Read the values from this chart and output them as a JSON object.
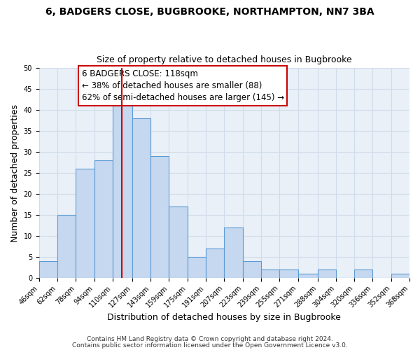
{
  "title": "6, BADGERS CLOSE, BUGBROOKE, NORTHAMPTON, NN7 3BA",
  "subtitle": "Size of property relative to detached houses in Bugbrooke",
  "xlabel": "Distribution of detached houses by size in Bugbrooke",
  "ylabel": "Number of detached properties",
  "bar_values": [
    4,
    15,
    26,
    28,
    42,
    38,
    29,
    17,
    5,
    7,
    12,
    4,
    2,
    2,
    1,
    2,
    0,
    2,
    0,
    1
  ],
  "bin_edges": [
    46,
    62,
    78,
    94,
    110,
    127,
    143,
    159,
    175,
    191,
    207,
    223,
    239,
    255,
    271,
    288,
    304,
    320,
    336,
    352,
    368
  ],
  "tick_labels": [
    "46sqm",
    "62sqm",
    "78sqm",
    "94sqm",
    "110sqm",
    "127sqm",
    "143sqm",
    "159sqm",
    "175sqm",
    "191sqm",
    "207sqm",
    "223sqm",
    "239sqm",
    "255sqm",
    "271sqm",
    "288sqm",
    "304sqm",
    "320sqm",
    "336sqm",
    "352sqm",
    "368sqm"
  ],
  "bar_color": "#c5d8f0",
  "bar_edge_color": "#5b9bd5",
  "vline_x": 118,
  "vline_color": "#cc0000",
  "annotation_line1": "6 BADGERS CLOSE: 118sqm",
  "annotation_line2": "← 38% of detached houses are smaller (88)",
  "annotation_line3": "62% of semi-detached houses are larger (145) →",
  "annotation_box_color": "#cc0000",
  "annotation_bg": "#ffffff",
  "ylim": [
    0,
    50
  ],
  "yticks": [
    0,
    5,
    10,
    15,
    20,
    25,
    30,
    35,
    40,
    45,
    50
  ],
  "grid_color": "#d0dcea",
  "footnote1": "Contains HM Land Registry data © Crown copyright and database right 2024.",
  "footnote2": "Contains public sector information licensed under the Open Government Licence v3.0.",
  "title_fontsize": 10,
  "subtitle_fontsize": 9,
  "axis_label_fontsize": 9,
  "tick_fontsize": 7,
  "annot_fontsize": 8.5,
  "footnote_fontsize": 6.5
}
